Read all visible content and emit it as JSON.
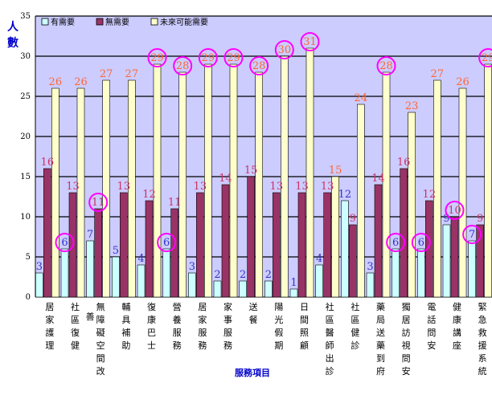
{
  "chart_data": {
    "type": "bar",
    "title": "",
    "ylabel": "人數",
    "xlabel": "服務項目",
    "ylim": [
      0,
      35
    ],
    "yticks": [
      0,
      5,
      10,
      15,
      20,
      25,
      30,
      35
    ],
    "grid": true,
    "legend_position": "top-left",
    "categories": [
      "居家護理",
      "社區復健",
      "無障礙空間改善",
      "輔具補助",
      "復康巴士",
      "營養服務",
      "居家服務",
      "家事服務",
      "送餐",
      "陽光假期",
      "日間照顧",
      "社區醫師出診",
      "社區健診",
      "藥局送藥到府",
      "獨居訪視問安",
      "電話問安",
      "健康講座",
      "緊急救援系統"
    ],
    "series": [
      {
        "name": "有需要",
        "color": "#ccffff",
        "label_color": "#3333cc",
        "values": [
          3,
          6,
          7,
          5,
          4,
          6,
          3,
          2,
          2,
          2,
          1,
          4,
          12,
          3,
          6,
          6,
          9,
          7
        ]
      },
      {
        "name": "無需要",
        "color": "#993366",
        "label_color": "#cc3366",
        "values": [
          16,
          13,
          11,
          13,
          12,
          11,
          13,
          14,
          15,
          13,
          13,
          13,
          9,
          14,
          16,
          12,
          10,
          9
        ]
      },
      {
        "name": "未來可能需要",
        "color": "#ffffcc",
        "label_color": "#ff6633",
        "values": [
          26,
          26,
          27,
          27,
          29,
          28,
          29,
          29,
          28,
          30,
          31,
          15,
          24,
          28,
          23,
          27,
          26,
          29
        ]
      }
    ],
    "highlights": [
      {
        "category": 1,
        "series": 0
      },
      {
        "category": 2,
        "series": 1
      },
      {
        "category": 4,
        "series": 2
      },
      {
        "category": 5,
        "series": 0
      },
      {
        "category": 5,
        "series": 2
      },
      {
        "category": 6,
        "series": 2
      },
      {
        "category": 7,
        "series": 2
      },
      {
        "category": 8,
        "series": 2
      },
      {
        "category": 9,
        "series": 2
      },
      {
        "category": 10,
        "series": 2
      },
      {
        "category": 13,
        "series": 2
      },
      {
        "category": 14,
        "series": 0
      },
      {
        "category": 15,
        "series": 0
      },
      {
        "category": 16,
        "series": 1
      },
      {
        "category": 17,
        "series": 0
      },
      {
        "category": 17,
        "series": 2
      }
    ],
    "colors": {
      "plot_background": "#ccccff",
      "grid_line": "#000000",
      "highlight_circle": "#ff00ff",
      "axis_text": "#0000cc"
    }
  }
}
